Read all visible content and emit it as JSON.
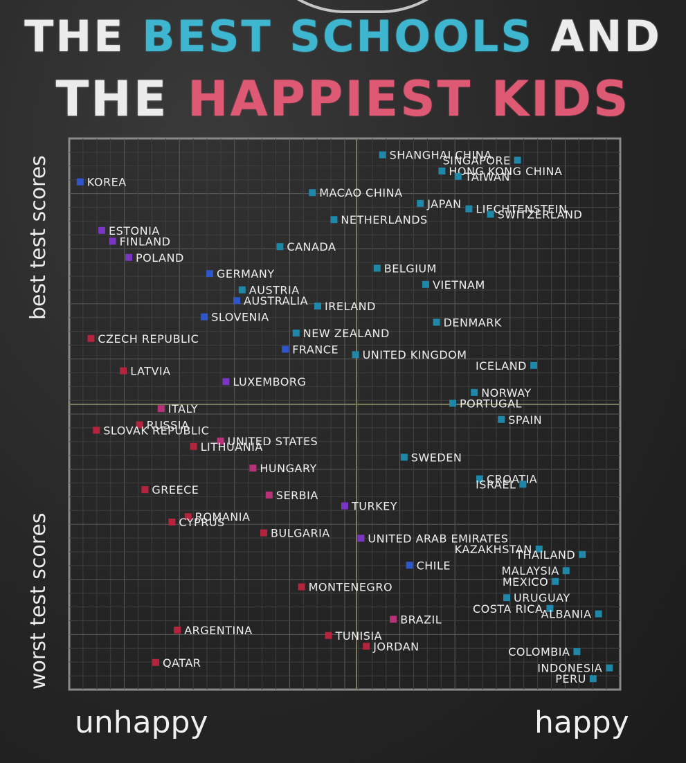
{
  "title": {
    "line1_part1": "THE",
    "line1_part2": "BEST SCHOOLS",
    "line1_part3": "AND",
    "line2_part1": "THE",
    "line2_part2": "HAPPIEST KIDS"
  },
  "colors": {
    "blue_title": "#3fb6cf",
    "pink_title": "#de5a74",
    "teal_marker": "#1f87a8",
    "blue_marker": "#2f56c8",
    "purple_marker": "#7a35c2",
    "magenta_marker": "#b8327a",
    "red_marker": "#b5243d"
  },
  "chart_data": {
    "type": "scatter",
    "title": "THE BEST SCHOOLS AND THE HAPPIEST KIDS",
    "xlabel_left": "unhappy",
    "xlabel_right": "happy",
    "ylabel_top": "best test scores",
    "ylabel_bottom": "worst test scores",
    "xlim": [
      0,
      100
    ],
    "ylim": [
      0,
      100
    ],
    "grid": true,
    "points": [
      {
        "label": "KOREA",
        "x": 1,
        "y": 93,
        "color": "#2f56c8"
      },
      {
        "label": "SHANGHAI CHINA",
        "x": 57,
        "y": 98,
        "color": "#1f87a8"
      },
      {
        "label": "HONG KONG CHINA",
        "x": 68,
        "y": 95,
        "color": "#1f87a8"
      },
      {
        "label": "SINGAPORE",
        "x": 82,
        "y": 97,
        "color": "#1f87a8"
      },
      {
        "label": "TAIWAN",
        "x": 71,
        "y": 94,
        "color": "#1f87a8"
      },
      {
        "label": "MACAO CHINA",
        "x": 44,
        "y": 91,
        "color": "#1f87a8"
      },
      {
        "label": "JAPAN",
        "x": 64,
        "y": 89,
        "color": "#1f87a8"
      },
      {
        "label": "LIECHTENSTEIN",
        "x": 73,
        "y": 88,
        "color": "#1f87a8"
      },
      {
        "label": "SWITZERLAND",
        "x": 77,
        "y": 87,
        "color": "#1f87a8"
      },
      {
        "label": "NETHERLANDS",
        "x": 48,
        "y": 86,
        "color": "#1f87a8"
      },
      {
        "label": "ESTONIA",
        "x": 5,
        "y": 84,
        "color": "#7a35c2"
      },
      {
        "label": "FINLAND",
        "x": 7,
        "y": 82,
        "color": "#7a35c2"
      },
      {
        "label": "CANADA",
        "x": 38,
        "y": 81,
        "color": "#1f87a8"
      },
      {
        "label": "POLAND",
        "x": 10,
        "y": 79,
        "color": "#7a35c2"
      },
      {
        "label": "BELGIUM",
        "x": 56,
        "y": 77,
        "color": "#1f87a8"
      },
      {
        "label": "GERMANY",
        "x": 25,
        "y": 76,
        "color": "#2f56c8"
      },
      {
        "label": "VIETNAM",
        "x": 65,
        "y": 74,
        "color": "#1f87a8"
      },
      {
        "label": "AUSTRIA",
        "x": 31,
        "y": 73,
        "color": "#1f87a8"
      },
      {
        "label": "AUSTRALIA",
        "x": 30,
        "y": 71,
        "color": "#2f56c8"
      },
      {
        "label": "IRELAND",
        "x": 45,
        "y": 70,
        "color": "#1f87a8"
      },
      {
        "label": "SLOVENIA",
        "x": 24,
        "y": 68,
        "color": "#2f56c8"
      },
      {
        "label": "DENMARK",
        "x": 67,
        "y": 67,
        "color": "#1f87a8"
      },
      {
        "label": "NEW ZEALAND",
        "x": 41,
        "y": 65,
        "color": "#1f87a8"
      },
      {
        "label": "CZECH REPUBLIC",
        "x": 3,
        "y": 64,
        "color": "#b5243d"
      },
      {
        "label": "FRANCE",
        "x": 39,
        "y": 62,
        "color": "#2f56c8"
      },
      {
        "label": "UNITED KINGDOM",
        "x": 52,
        "y": 61,
        "color": "#1f87a8"
      },
      {
        "label": "ICELAND",
        "x": 85,
        "y": 59,
        "color": "#1f87a8"
      },
      {
        "label": "LATVIA",
        "x": 9,
        "y": 58,
        "color": "#b5243d"
      },
      {
        "label": "LUXEMBORG",
        "x": 28,
        "y": 56,
        "color": "#7a35c2"
      },
      {
        "label": "NORWAY",
        "x": 74,
        "y": 54,
        "color": "#1f87a8"
      },
      {
        "label": "PORTUGAL",
        "x": 70,
        "y": 52,
        "color": "#1f87a8"
      },
      {
        "label": "ITALY",
        "x": 16,
        "y": 51,
        "color": "#b8327a"
      },
      {
        "label": "SPAIN",
        "x": 79,
        "y": 49,
        "color": "#1f87a8"
      },
      {
        "label": "RUSSIA",
        "x": 12,
        "y": 48,
        "color": "#b5243d"
      },
      {
        "label": "SLOVAK REPUBLIC",
        "x": 4,
        "y": 47,
        "color": "#b5243d"
      },
      {
        "label": "UNITED STATES",
        "x": 27,
        "y": 45,
        "color": "#b8327a"
      },
      {
        "label": "LITHUANIA",
        "x": 22,
        "y": 44,
        "color": "#b5243d"
      },
      {
        "label": "SWEDEN",
        "x": 61,
        "y": 42,
        "color": "#1f87a8"
      },
      {
        "label": "HUNGARY",
        "x": 33,
        "y": 40,
        "color": "#b8327a"
      },
      {
        "label": "CROATIA",
        "x": 75,
        "y": 38,
        "color": "#1f87a8"
      },
      {
        "label": "ISRAEL",
        "x": 83,
        "y": 37,
        "color": "#1f87a8"
      },
      {
        "label": "GREECE",
        "x": 13,
        "y": 36,
        "color": "#b5243d"
      },
      {
        "label": "SERBIA",
        "x": 36,
        "y": 35,
        "color": "#b8327a"
      },
      {
        "label": "TURKEY",
        "x": 50,
        "y": 33,
        "color": "#7a35c2"
      },
      {
        "label": "ROMANIA",
        "x": 21,
        "y": 31,
        "color": "#b5243d"
      },
      {
        "label": "CYPRUS",
        "x": 18,
        "y": 30,
        "color": "#b5243d"
      },
      {
        "label": "BULGARIA",
        "x": 35,
        "y": 28,
        "color": "#b5243d"
      },
      {
        "label": "UNITED ARAB EMIRATES",
        "x": 53,
        "y": 27,
        "color": "#7a35c2"
      },
      {
        "label": "KAZAKHSTAN",
        "x": 86,
        "y": 25,
        "color": "#1f87a8"
      },
      {
        "label": "THAILAND",
        "x": 94,
        "y": 24,
        "color": "#1f87a8"
      },
      {
        "label": "CHILE",
        "x": 62,
        "y": 22,
        "color": "#2f56c8"
      },
      {
        "label": "MALAYSIA",
        "x": 91,
        "y": 21,
        "color": "#1f87a8"
      },
      {
        "label": "MEXICO",
        "x": 89,
        "y": 19,
        "color": "#1f87a8"
      },
      {
        "label": "MONTENEGRO",
        "x": 42,
        "y": 18,
        "color": "#b5243d"
      },
      {
        "label": "URUGUAY",
        "x": 80,
        "y": 16,
        "color": "#1f87a8"
      },
      {
        "label": "COSTA RICA",
        "x": 88,
        "y": 14,
        "color": "#1f87a8"
      },
      {
        "label": "ALBANIA",
        "x": 97,
        "y": 13,
        "color": "#1f87a8"
      },
      {
        "label": "BRAZIL",
        "x": 59,
        "y": 12,
        "color": "#b8327a"
      },
      {
        "label": "ARGENTINA",
        "x": 19,
        "y": 10,
        "color": "#b5243d"
      },
      {
        "label": "TUNISIA",
        "x": 47,
        "y": 9,
        "color": "#b5243d"
      },
      {
        "label": "JORDAN",
        "x": 54,
        "y": 7,
        "color": "#b5243d"
      },
      {
        "label": "COLOMBIA",
        "x": 93,
        "y": 6,
        "color": "#1f87a8"
      },
      {
        "label": "QATAR",
        "x": 15,
        "y": 4,
        "color": "#b5243d"
      },
      {
        "label": "INDONESIA",
        "x": 99,
        "y": 3,
        "color": "#1f87a8"
      },
      {
        "label": "PERU",
        "x": 96,
        "y": 1,
        "color": "#1f87a8"
      }
    ]
  }
}
